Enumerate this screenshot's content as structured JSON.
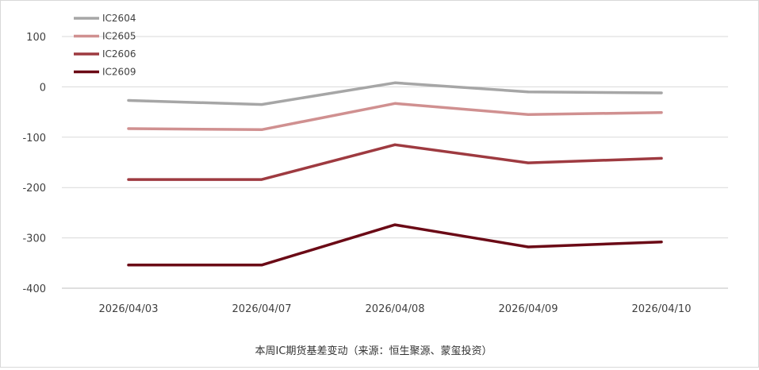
{
  "chart_data": {
    "type": "line",
    "categories": [
      "2026/04/03",
      "2026/04/07",
      "2026/04/08",
      "2026/04/09",
      "2026/04/10"
    ],
    "ylim": [
      -400,
      100
    ],
    "yticks": [
      100,
      0,
      -100,
      -200,
      -300,
      -400
    ],
    "ytick_labels": [
      "100",
      "0",
      "-100",
      "-200",
      "-300",
      "-400"
    ],
    "grid": true,
    "legend_position": "top-left",
    "series": [
      {
        "name": "IC2604",
        "color": "#a6a6a6",
        "values": [
          -27,
          -35,
          8,
          -10,
          -12
        ]
      },
      {
        "name": "IC2605",
        "color": "#d09090",
        "values": [
          -83,
          -85,
          -33,
          -55,
          -51
        ]
      },
      {
        "name": "IC2606",
        "color": "#9e3a40",
        "values": [
          -184,
          -184,
          -115,
          -151,
          -142
        ]
      },
      {
        "name": "IC2609",
        "color": "#6b0a16",
        "values": [
          -354,
          -354,
          -274,
          -318,
          -308
        ]
      }
    ],
    "caption": "本周IC期货基差变动（来源：恒生聚源、蒙玺投资）"
  }
}
